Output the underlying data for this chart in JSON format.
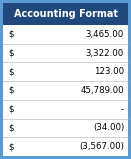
{
  "title": "Accounting Format",
  "title_bg": "#1F497D",
  "title_fg": "#FFFFFF",
  "header_fontsize": 7.0,
  "row_fontsize": 6.2,
  "rows": [
    [
      "$",
      "3,465.00"
    ],
    [
      "$",
      "3,322.00"
    ],
    [
      "$",
      "123.00"
    ],
    [
      "$",
      "45,789.00"
    ],
    [
      "$",
      "-"
    ],
    [
      "$",
      "(34.00)"
    ],
    [
      "$",
      "(3,567.00)"
    ]
  ],
  "text_color": "#000000",
  "figsize": [
    1.31,
    1.59
  ],
  "dpi": 100,
  "border_color": "#5B9BD5",
  "row_sep_color": "#C0C0C0",
  "row_bg": "#FFFFFF",
  "outer_bg": "#FFFFFF"
}
